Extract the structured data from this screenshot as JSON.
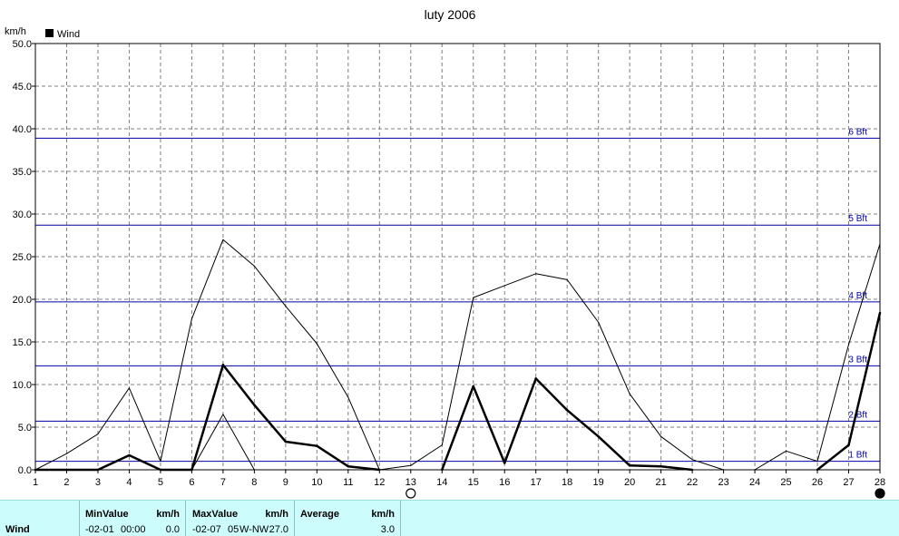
{
  "chart_data": {
    "type": "line",
    "title": "luty 2006",
    "ylabel": "km/h",
    "xlabel": "",
    "ylim": [
      0,
      50
    ],
    "yticks": [
      "0.0",
      "5.0",
      "10.0",
      "15.0",
      "20.0",
      "25.0",
      "30.0",
      "35.0",
      "40.0",
      "45.0",
      "50.0"
    ],
    "x": [
      1,
      2,
      3,
      4,
      5,
      6,
      7,
      8,
      9,
      10,
      11,
      12,
      13,
      14,
      15,
      16,
      17,
      18,
      19,
      20,
      21,
      22,
      23,
      24,
      25,
      26,
      27,
      28
    ],
    "legend": [
      "Wind"
    ],
    "grid": true,
    "series": [
      {
        "name": "Wind",
        "style": "thick",
        "color": "#000000",
        "values": [
          0,
          0,
          0,
          1.7,
          0,
          0,
          12.3,
          7.6,
          3.3,
          2.8,
          0.4,
          0,
          null,
          0,
          9.8,
          0.8,
          10.7,
          7.0,
          3.9,
          0.5,
          0.4,
          0,
          null,
          null,
          null,
          0,
          2.9,
          18.4
        ]
      },
      {
        "style": "thin",
        "color": "#000000",
        "values": [
          0,
          1.9,
          4.2,
          9.6,
          1.0,
          17.7,
          27.0,
          23.9,
          19.2,
          14.8,
          8.5,
          0,
          0.5,
          2.9,
          20.2,
          21.6,
          23.0,
          22.3,
          17.3,
          8.9,
          3.9,
          1.2,
          0,
          0,
          2.2,
          1.0,
          14.7,
          26.5
        ]
      },
      {
        "style": "thin",
        "color": "#000000",
        "values": [
          null,
          null,
          null,
          null,
          null,
          0,
          6.5,
          0,
          null,
          null,
          null,
          null,
          null,
          null,
          null,
          null,
          null,
          null,
          null,
          null,
          null,
          null,
          null,
          null,
          null,
          null,
          null,
          null
        ]
      }
    ],
    "beaufort": [
      {
        "label": "1 Bft",
        "value": 1.0
      },
      {
        "label": "2 Bft",
        "value": 5.7
      },
      {
        "label": "3 Bft",
        "value": 12.2
      },
      {
        "label": "4 Bft",
        "value": 19.7
      },
      {
        "label": "5 Bft",
        "value": 28.7
      },
      {
        "label": "6 Bft",
        "value": 38.9
      }
    ],
    "moon": [
      {
        "day": 13,
        "phase": "full"
      },
      {
        "day": 28,
        "phase": "new"
      }
    ]
  },
  "stats": {
    "label": "Wind",
    "min": {
      "header": "MinValue",
      "unit": "km/h",
      "date": "-02-01",
      "time": "00:00",
      "value": "0.0"
    },
    "max": {
      "header": "MaxValue",
      "unit": "km/h",
      "date": "-02-07",
      "time": "05",
      "dir": "W-NW",
      "value": "27.0"
    },
    "avg": {
      "header": "Average",
      "unit": "km/h",
      "value": "3.0"
    }
  },
  "colors": {
    "bft_line": "#0000aa",
    "panel": "#ccfcfc",
    "grid": "#808080"
  }
}
